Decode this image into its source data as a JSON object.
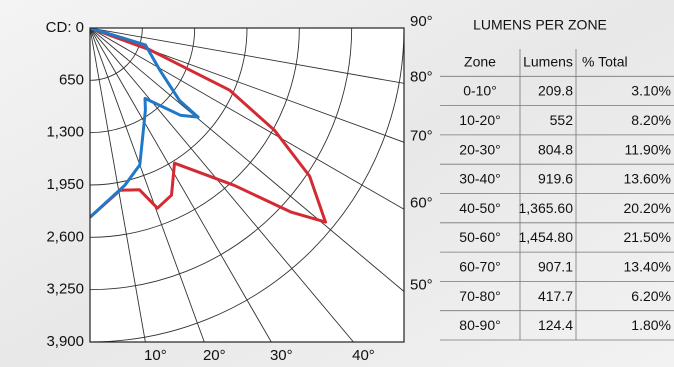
{
  "chart_data": {
    "type": "polar",
    "rlim": [
      0,
      3900
    ],
    "rticks": [
      {
        "value": 0,
        "label": "CD: 0"
      },
      650,
      {
        "value": 1300,
        "label": "1,300"
      },
      {
        "value": 1950,
        "label": "1,950"
      },
      {
        "value": 2600,
        "label": "2,600"
      },
      {
        "value": 3250,
        "label": "3,250"
      },
      {
        "value": 3900,
        "label": "3,900"
      }
    ],
    "angle_ticks": [
      {
        "value": 10,
        "label": "10°"
      },
      {
        "value": 20,
        "label": "20°"
      },
      {
        "value": 30,
        "label": "30°"
      },
      {
        "value": 40,
        "label": "40°"
      },
      {
        "value": 50,
        "label": "50°"
      },
      {
        "value": 60,
        "label": "60°"
      },
      {
        "value": 70,
        "label": "70°"
      },
      {
        "value": 80,
        "label": "80°"
      },
      {
        "value": 90,
        "label": "90°"
      }
    ],
    "grid": true,
    "series": [
      {
        "color": "#d42a33",
        "angles": [
          90,
          70,
          66,
          61,
          56,
          50.5,
          47.5,
          42.5,
          32,
          26,
          20.5,
          17,
          10.5,
          0
        ],
        "values": [
          0,
          790,
          1900,
          2620,
          3290,
          3790,
          3380,
          2650,
          1980,
          2310,
          2390,
          2100,
          2050,
          2350
        ]
      },
      {
        "color": "#1f78c8",
        "angles": [
          90,
          73,
          59,
          51,
          50.5,
          46,
          38,
          34,
          20,
          12.5,
          0
        ],
        "values": [
          0,
          720,
          1010,
          1430,
          1740,
          1560,
          1110,
          1230,
          1810,
          2000,
          2350
        ]
      }
    ]
  },
  "table": {
    "title": "LUMENS PER ZONE",
    "header": [
      "Zone",
      "Lumens",
      "% Total"
    ],
    "rows": [
      [
        "0-10°",
        "209.8",
        "3.10%"
      ],
      [
        "10-20°",
        "552",
        "8.20%"
      ],
      [
        "20-30°",
        "804.8",
        "11.90%"
      ],
      [
        "30-40°",
        "919.6",
        "13.60%"
      ],
      [
        "40-50°",
        "1,365.60",
        "20.20%"
      ],
      [
        "50-60°",
        "1,454.80",
        "21.50%"
      ],
      [
        "60-70°",
        "907.1",
        "13.40%"
      ],
      [
        "70-80°",
        "417.7",
        "6.20%"
      ],
      [
        "80-90°",
        "124.4",
        "1.80%"
      ]
    ]
  }
}
